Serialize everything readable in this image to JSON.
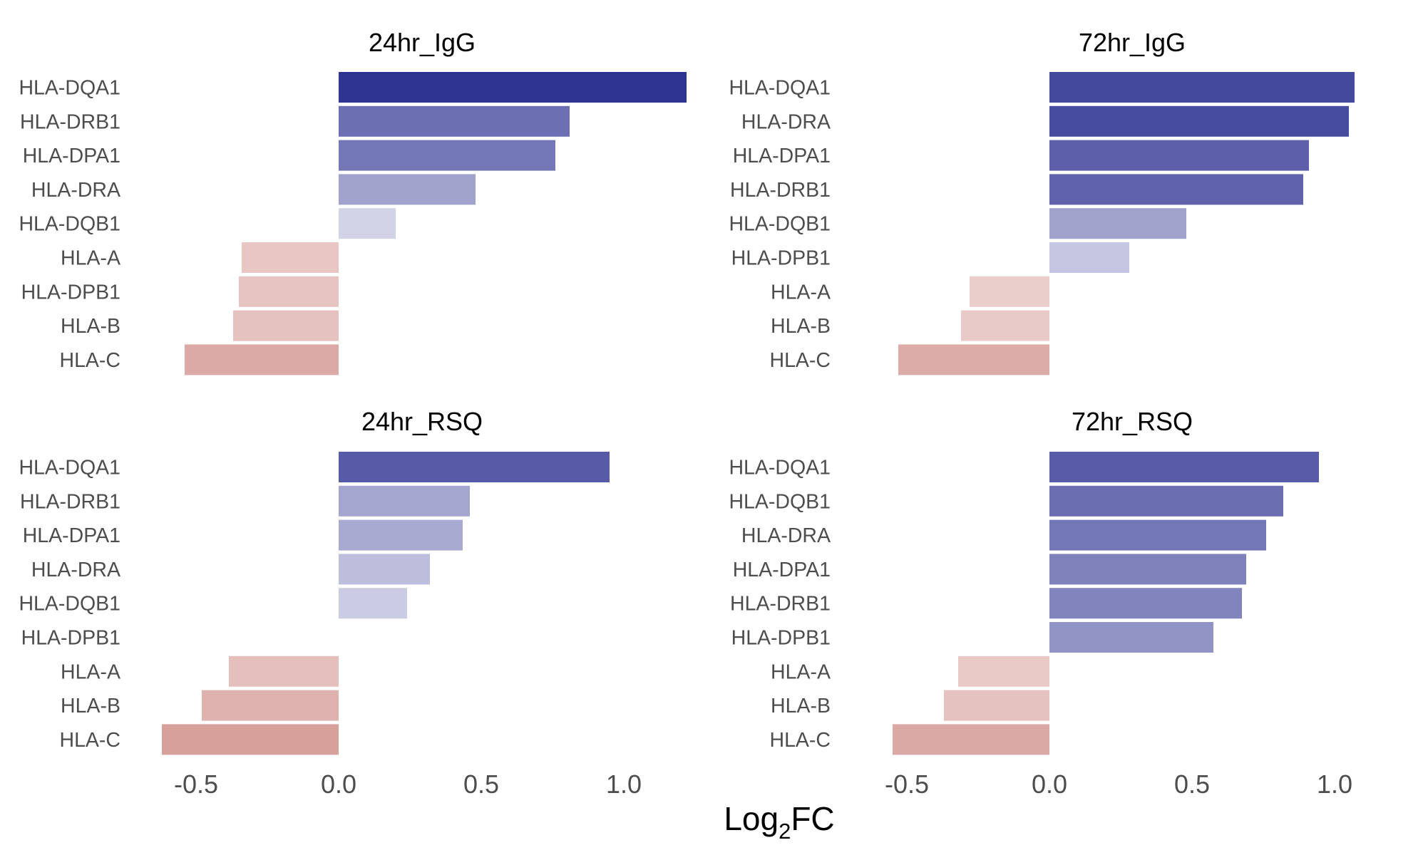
{
  "chart_data": {
    "type": "bar",
    "orientation": "horizontal",
    "grid": false,
    "legend": "none",
    "xlabel": {
      "main": "Log",
      "subscript": "2",
      "suffix": "FC"
    },
    "xlim": [
      -0.65,
      1.25
    ],
    "xticks": [
      -0.5,
      0.0,
      0.5,
      1.0
    ],
    "xtick_labels": [
      "-0.5",
      "0.0",
      "0.5",
      "1.0"
    ],
    "color_scale": {
      "negative": "#b5524a",
      "zero": "#ffffff",
      "positive": "#2b2f8f",
      "max_abs": 1.25
    },
    "panels": [
      {
        "title": "24hr_IgG",
        "categories": [
          "HLA-DQA1",
          "HLA-DRB1",
          "HLA-DPA1",
          "HLA-DRA",
          "HLA-DQB1",
          "HLA-A",
          "HLA-DPB1",
          "HLA-B",
          "HLA-C"
        ],
        "values": [
          1.22,
          0.81,
          0.76,
          0.48,
          0.2,
          -0.34,
          -0.35,
          -0.37,
          -0.54
        ]
      },
      {
        "title": "72hr_IgG",
        "categories": [
          "HLA-DQA1",
          "HLA-DRA",
          "HLA-DPA1",
          "HLA-DRB1",
          "HLA-DQB1",
          "HLA-DPB1",
          "HLA-A",
          "HLA-B",
          "HLA-C"
        ],
        "values": [
          1.07,
          1.05,
          0.91,
          0.89,
          0.48,
          0.28,
          -0.28,
          -0.31,
          -0.53
        ]
      },
      {
        "title": "24hr_RSQ",
        "categories": [
          "HLA-DQA1",
          "HLA-DRB1",
          "HLA-DPA1",
          "HLA-DRA",
          "HLA-DQB1",
          "HLA-DPB1",
          "HLA-A",
          "HLA-B",
          "HLA-C"
        ],
        "values": [
          0.95,
          0.46,
          0.435,
          0.32,
          0.24,
          0.0,
          -0.385,
          -0.48,
          -0.62
        ]
      },
      {
        "title": "72hr_RSQ",
        "categories": [
          "HLA-DQA1",
          "HLA-DQB1",
          "HLA-DRA",
          "HLA-DPA1",
          "HLA-DRB1",
          "HLA-DPB1",
          "HLA-A",
          "HLA-B",
          "HLA-C"
        ],
        "values": [
          0.945,
          0.82,
          0.76,
          0.69,
          0.675,
          0.575,
          -0.32,
          -0.37,
          -0.55
        ]
      }
    ]
  }
}
